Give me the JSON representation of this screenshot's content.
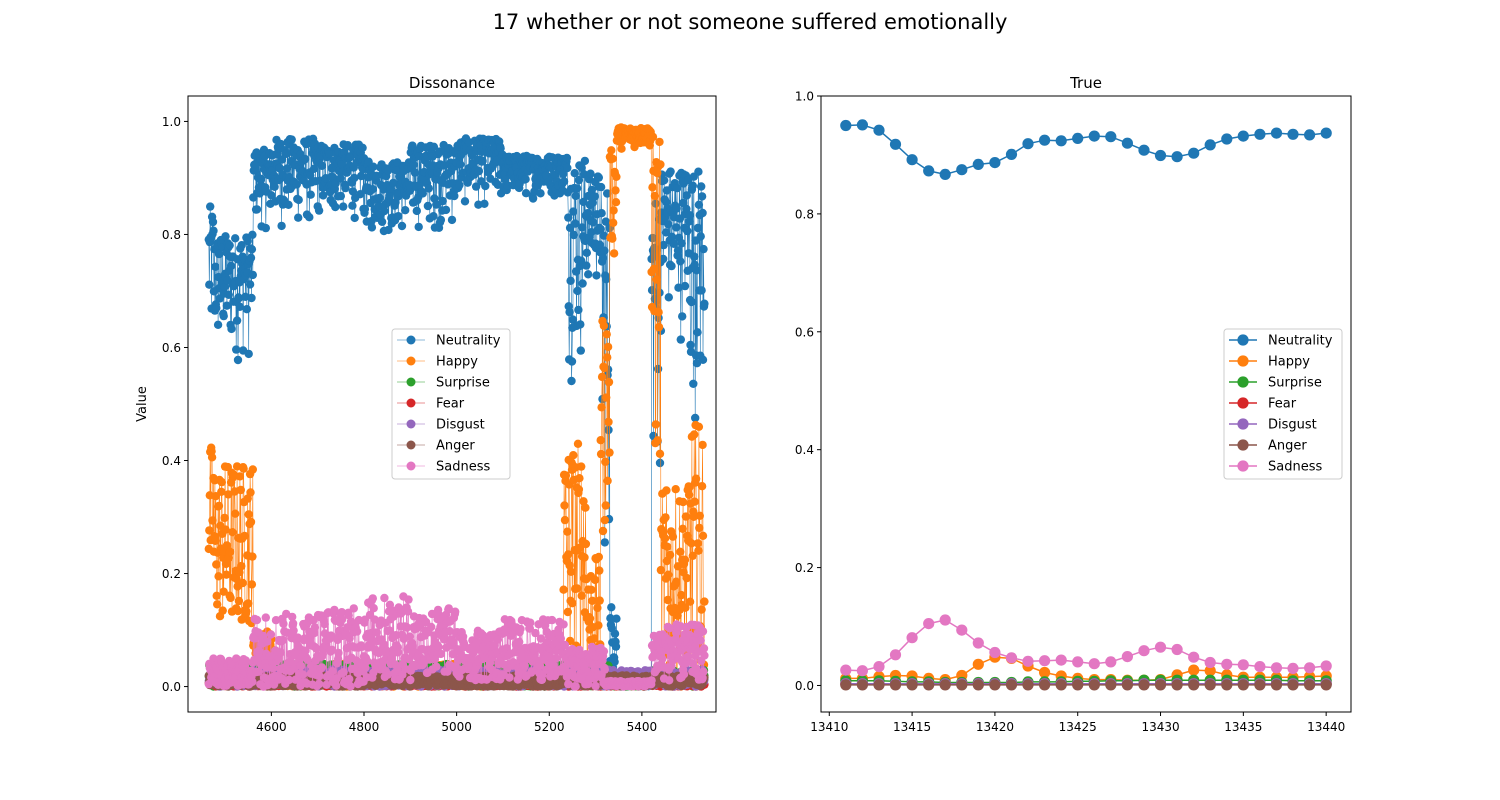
{
  "figure": {
    "title": "17 whether or not someone suffered emotionally"
  },
  "chart_data": [
    {
      "type": "line",
      "title": "Dissonance",
      "xlabel": "",
      "ylabel": "Value",
      "xlim": [
        4420,
        5560
      ],
      "ylim": [
        -0.045,
        1.045
      ],
      "xticks": [
        4600,
        4800,
        5000,
        5200,
        5400
      ],
      "yticks": [
        0.0,
        0.2,
        0.4,
        0.6,
        0.8,
        1.0
      ],
      "ytick_labels": [
        "0.0",
        "0.2",
        "0.4",
        "0.6",
        "0.8",
        "1.0"
      ],
      "grid": false,
      "legend_position": "center-right",
      "marker": "o",
      "note": "dense noisy series of ~1070 points; values summarised as piecewise segments [x_start, x_end, y_low, y_high]",
      "x_range": [
        4465,
        5535
      ],
      "series": [
        {
          "name": "Neutrality",
          "color": "#1f77b4",
          "segments": [
            [
              4465,
              4475,
              0.54,
              0.85
            ],
            [
              4475,
              4560,
              0.56,
              0.8
            ],
            [
              4560,
              4600,
              0.8,
              0.95
            ],
            [
              4600,
              4700,
              0.8,
              0.97
            ],
            [
              4700,
              4800,
              0.82,
              0.96
            ],
            [
              4800,
              4900,
              0.79,
              0.93
            ],
            [
              4900,
              5000,
              0.8,
              0.96
            ],
            [
              5000,
              5100,
              0.84,
              0.97
            ],
            [
              5100,
              5240,
              0.86,
              0.94
            ],
            [
              5240,
              5280,
              0.53,
              0.94
            ],
            [
              5280,
              5310,
              0.68,
              0.91
            ],
            [
              5310,
              5330,
              0.15,
              0.9
            ],
            [
              5330,
              5345,
              0.03,
              0.15
            ],
            [
              5345,
              5420,
              0.0,
              0.02
            ],
            [
              5420,
              5440,
              0.3,
              0.88
            ],
            [
              5440,
              5500,
              0.6,
              0.92
            ],
            [
              5500,
              5535,
              0.45,
              0.92
            ]
          ]
        },
        {
          "name": "Happy",
          "color": "#ff7f0e",
          "segments": [
            [
              4465,
              4475,
              0.19,
              0.43
            ],
            [
              4475,
              4560,
              0.11,
              0.4
            ],
            [
              4560,
              4600,
              0.01,
              0.1
            ],
            [
              4600,
              5230,
              0.0,
              0.04
            ],
            [
              5230,
              5280,
              0.04,
              0.44
            ],
            [
              5280,
              5310,
              0.01,
              0.23
            ],
            [
              5310,
              5330,
              0.2,
              0.66
            ],
            [
              5330,
              5345,
              0.73,
              0.95
            ],
            [
              5345,
              5420,
              0.95,
              0.99
            ],
            [
              5420,
              5440,
              0.2,
              0.98
            ],
            [
              5440,
              5500,
              0.0,
              0.35
            ],
            [
              5500,
              5535,
              0.0,
              0.47
            ]
          ]
        },
        {
          "name": "Surprise",
          "color": "#2ca02c",
          "segments": [
            [
              4465,
              5330,
              0.0,
              0.04
            ],
            [
              5330,
              5420,
              0.0,
              0.01
            ],
            [
              5420,
              5535,
              0.0,
              0.03
            ]
          ]
        },
        {
          "name": "Fear",
          "color": "#d62728",
          "segments": [
            [
              4465,
              5535,
              0.0,
              0.01
            ]
          ]
        },
        {
          "name": "Disgust",
          "color": "#9467bd",
          "segments": [
            [
              4465,
              5535,
              0.0,
              0.03
            ]
          ]
        },
        {
          "name": "Anger",
          "color": "#8c564b",
          "segments": [
            [
              4465,
              5535,
              0.0,
              0.02
            ]
          ]
        },
        {
          "name": "Sadness",
          "color": "#e377c2",
          "segments": [
            [
              4465,
              4560,
              0.0,
              0.05
            ],
            [
              4560,
              4700,
              0.0,
              0.13
            ],
            [
              4700,
              4800,
              0.0,
              0.14
            ],
            [
              4800,
              4900,
              0.01,
              0.16
            ],
            [
              4900,
              5000,
              0.02,
              0.14
            ],
            [
              5000,
              5100,
              0.01,
              0.1
            ],
            [
              5100,
              5240,
              0.01,
              0.12
            ],
            [
              5240,
              5320,
              0.0,
              0.07
            ],
            [
              5320,
              5420,
              0.0,
              0.01
            ],
            [
              5420,
              5535,
              0.01,
              0.11
            ]
          ]
        }
      ]
    },
    {
      "type": "line",
      "title": "True",
      "xlabel": "",
      "ylabel": "",
      "xlim": [
        13409.5,
        13441.5
      ],
      "ylim": [
        -0.045,
        1.0
      ],
      "xticks": [
        13410,
        13415,
        13420,
        13425,
        13430,
        13435,
        13440
      ],
      "yticks": [
        0.0,
        0.2,
        0.4,
        0.6,
        0.8,
        1.0
      ],
      "ytick_labels": [
        "0.0",
        "0.2",
        "0.4",
        "0.6",
        "0.8",
        "1.0"
      ],
      "grid": false,
      "legend_position": "center-right",
      "marker": "o",
      "x": [
        13411,
        13412,
        13413,
        13414,
        13415,
        13416,
        13417,
        13418,
        13419,
        13420,
        13421,
        13422,
        13423,
        13424,
        13425,
        13426,
        13427,
        13428,
        13429,
        13430,
        13431,
        13432,
        13433,
        13434,
        13435,
        13436,
        13437,
        13438,
        13439,
        13440
      ],
      "series": [
        {
          "name": "Neutrality",
          "color": "#1f77b4",
          "values": [
            0.95,
            0.951,
            0.942,
            0.918,
            0.892,
            0.873,
            0.867,
            0.875,
            0.884,
            0.887,
            0.901,
            0.919,
            0.925,
            0.924,
            0.928,
            0.932,
            0.931,
            0.92,
            0.908,
            0.899,
            0.897,
            0.903,
            0.917,
            0.927,
            0.932,
            0.935,
            0.937,
            0.935,
            0.934,
            0.937
          ]
        },
        {
          "name": "Happy",
          "color": "#ff7f0e",
          "values": [
            0.012,
            0.012,
            0.015,
            0.017,
            0.016,
            0.012,
            0.01,
            0.017,
            0.036,
            0.048,
            0.046,
            0.033,
            0.022,
            0.016,
            0.012,
            0.01,
            0.01,
            0.009,
            0.009,
            0.01,
            0.018,
            0.026,
            0.025,
            0.018,
            0.014,
            0.014,
            0.014,
            0.014,
            0.015,
            0.016
          ]
        },
        {
          "name": "Surprise",
          "color": "#2ca02c",
          "values": [
            0.008,
            0.008,
            0.008,
            0.007,
            0.006,
            0.006,
            0.005,
            0.005,
            0.005,
            0.005,
            0.005,
            0.006,
            0.006,
            0.006,
            0.007,
            0.007,
            0.008,
            0.008,
            0.009,
            0.009,
            0.009,
            0.009,
            0.009,
            0.009,
            0.009,
            0.009,
            0.009,
            0.008,
            0.008,
            0.008
          ]
        },
        {
          "name": "Fear",
          "color": "#d62728",
          "values": [
            0.003,
            0.003,
            0.003,
            0.003,
            0.003,
            0.003,
            0.003,
            0.003,
            0.003,
            0.003,
            0.003,
            0.003,
            0.003,
            0.003,
            0.003,
            0.003,
            0.003,
            0.003,
            0.003,
            0.003,
            0.003,
            0.003,
            0.003,
            0.003,
            0.003,
            0.003,
            0.003,
            0.003,
            0.003,
            0.003
          ]
        },
        {
          "name": "Disgust",
          "color": "#9467bd",
          "values": [
            0.003,
            0.003,
            0.003,
            0.003,
            0.003,
            0.003,
            0.003,
            0.003,
            0.003,
            0.003,
            0.003,
            0.003,
            0.003,
            0.003,
            0.003,
            0.003,
            0.003,
            0.003,
            0.003,
            0.003,
            0.003,
            0.003,
            0.003,
            0.003,
            0.003,
            0.003,
            0.003,
            0.003,
            0.003,
            0.003
          ]
        },
        {
          "name": "Anger",
          "color": "#8c564b",
          "values": [
            0.001,
            0.001,
            0.001,
            0.001,
            0.001,
            0.001,
            0.001,
            0.001,
            0.001,
            0.001,
            0.001,
            0.001,
            0.001,
            0.001,
            0.001,
            0.001,
            0.001,
            0.001,
            0.001,
            0.001,
            0.001,
            0.001,
            0.001,
            0.001,
            0.001,
            0.001,
            0.001,
            0.001,
            0.001,
            0.001
          ]
        },
        {
          "name": "Sadness",
          "color": "#e377c2",
          "values": [
            0.026,
            0.025,
            0.032,
            0.052,
            0.081,
            0.105,
            0.111,
            0.094,
            0.072,
            0.056,
            0.047,
            0.041,
            0.042,
            0.043,
            0.04,
            0.037,
            0.04,
            0.049,
            0.059,
            0.065,
            0.061,
            0.048,
            0.039,
            0.036,
            0.035,
            0.032,
            0.03,
            0.029,
            0.03,
            0.033
          ]
        }
      ]
    }
  ]
}
